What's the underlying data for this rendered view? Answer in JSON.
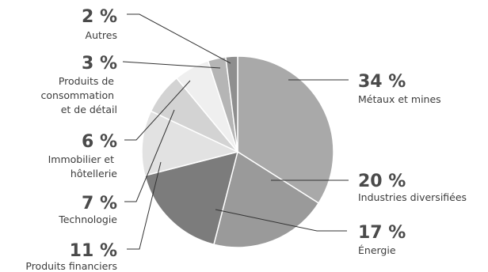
{
  "chart_data": {
    "type": "pie",
    "title": "",
    "slices": [
      {
        "label": "Métaux et mines",
        "value": 34,
        "value_label": "34 %",
        "color": "#a9a9a9"
      },
      {
        "label": "Industries diversifiées",
        "value": 20,
        "value_label": "20 %",
        "color": "#9a9a9a"
      },
      {
        "label": "Énergie",
        "value": 17,
        "value_label": "17 %",
        "color": "#7c7c7c"
      },
      {
        "label": "Produits financiers",
        "value": 11,
        "value_label": "11 %",
        "color": "#e2e2e2"
      },
      {
        "label": "Technologie",
        "value": 7,
        "value_label": "7 %",
        "color": "#d3d3d3"
      },
      {
        "label": "Immobilier et hôtellerie",
        "value": 6,
        "value_label": "6 %",
        "color": "#efefef"
      },
      {
        "label": "Produits de consommation et de détail",
        "value": 3,
        "value_label": "3 %",
        "color": "#b5b5b5"
      },
      {
        "label": "Autres",
        "value": 2,
        "value_label": "2 %",
        "color": "#8f8f8f"
      }
    ]
  }
}
